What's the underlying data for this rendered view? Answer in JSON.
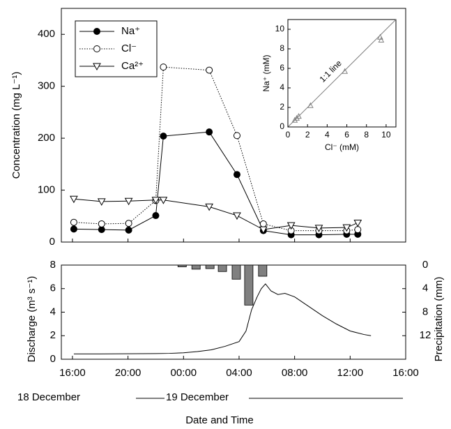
{
  "chart_data": [
    {
      "type": "line",
      "ylabel": "Concentration (mg L⁻¹)",
      "xlim": [
        15.2,
        40
      ],
      "ylim": [
        0,
        450
      ],
      "yticks": [
        0,
        100,
        200,
        300,
        400
      ],
      "legend": "upper left",
      "x": [
        16.1,
        18.1,
        20.05,
        22,
        22.55,
        25.85,
        27.85,
        29.75,
        31.75,
        33.75,
        35.75,
        36.55
      ],
      "series": [
        {
          "name": "Na⁺",
          "color": "#000000",
          "marker": "filled-circle",
          "dash": false,
          "values": [
            25,
            24,
            23,
            51,
            204,
            212,
            130,
            22,
            14,
            14,
            15,
            15
          ]
        },
        {
          "name": "Cl⁻",
          "color": "#000000",
          "marker": "open-circle",
          "dash": true,
          "values": [
            38,
            35,
            36,
            80,
            337,
            331,
            205,
            35,
            22,
            22,
            22,
            24
          ]
        },
        {
          "name": "Ca²⁺",
          "color": "#000000",
          "marker": "open-triangle-down",
          "dash": false,
          "values": [
            83,
            78,
            79,
            81,
            81,
            68,
            51,
            24,
            32,
            27,
            28,
            37
          ]
        }
      ]
    },
    {
      "type": "scatter",
      "xlabel": "Cl⁻ (mM)",
      "ylabel": "Na⁺ (mM)",
      "annotation": "1:1 line",
      "xlim": [
        0,
        11
      ],
      "ylim": [
        0,
        11
      ],
      "xticks": [
        0,
        2,
        4,
        6,
        8,
        10
      ],
      "yticks": [
        0,
        2,
        4,
        6,
        8,
        10
      ],
      "x": [
        0.7,
        0.9,
        1.1,
        2.3,
        5.8,
        9.4,
        9.5
      ],
      "values": [
        0.7,
        0.9,
        1.1,
        2.2,
        5.7,
        9.2,
        8.9
      ],
      "color": "#808080"
    },
    {
      "type": "line",
      "xlabel": "Date and Time",
      "ylabel": "Discharge (m³ s⁻¹)",
      "y2label": "Precipitation (mm)",
      "annotations": [
        "18 December",
        "19 December"
      ],
      "xlim": [
        15.2,
        40
      ],
      "xticks": [
        {
          "value": 16,
          "label": "16:00"
        },
        {
          "value": 20,
          "label": "20:00"
        },
        {
          "value": 24,
          "label": "00:00"
        },
        {
          "value": 28,
          "label": "04:00"
        },
        {
          "value": 32,
          "label": "08:00"
        },
        {
          "value": 36,
          "label": "12:00"
        },
        {
          "value": 40,
          "label": "16:00"
        }
      ],
      "ylim": [
        0,
        8
      ],
      "yticks": [
        0,
        2,
        4,
        6,
        8
      ],
      "y2lim": [
        0,
        16
      ],
      "y2ticks": [
        0,
        4,
        8,
        12
      ],
      "y2_inverted": true,
      "series": [
        {
          "type": "bar",
          "axis": "y2",
          "color": "#808080",
          "x": [
            23.9,
            24.9,
            25.9,
            26.8,
            27.8,
            28.7,
            29.7
          ],
          "values": [
            0.3,
            0.7,
            0.6,
            1.1,
            2.4,
            6.8,
            1.9
          ]
        },
        {
          "type": "line",
          "color": "#000000",
          "x": [
            16.1,
            18,
            20,
            22,
            23,
            24,
            25,
            26,
            27,
            28,
            28.5,
            28.9,
            29.3,
            29.6,
            29.9,
            30.3,
            30.8,
            31.3,
            32,
            33,
            34,
            35,
            36,
            37,
            37.5
          ],
          "values": [
            0.45,
            0.45,
            0.47,
            0.48,
            0.5,
            0.55,
            0.65,
            0.8,
            1.1,
            1.5,
            2.4,
            4.2,
            5.3,
            6.0,
            6.4,
            5.8,
            5.5,
            5.6,
            5.3,
            4.5,
            3.7,
            3.0,
            2.4,
            2.1,
            2.0
          ]
        }
      ]
    }
  ]
}
